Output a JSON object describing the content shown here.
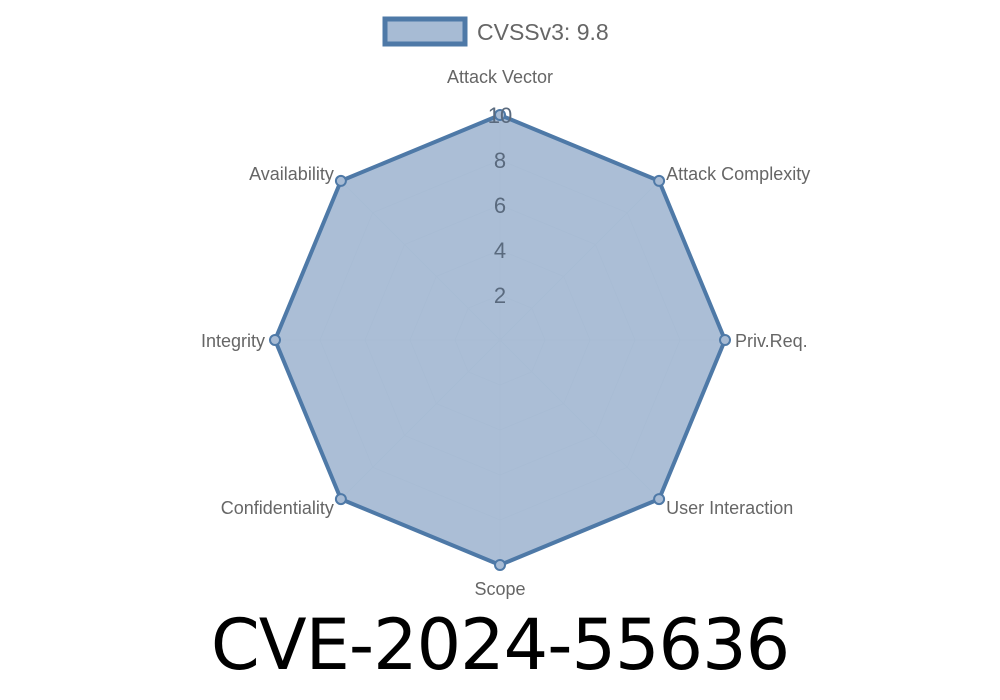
{
  "chart_data": {
    "type": "radar",
    "categories": [
      "Attack Vector",
      "Attack Complexity",
      "Priv.Req.",
      "User Interaction",
      "Scope",
      "Confidentiality",
      "Integrity",
      "Availability"
    ],
    "series": [
      {
        "name": "CVSSv3: 9.8",
        "values": [
          10,
          10,
          10,
          10,
          10,
          10,
          10,
          10
        ]
      }
    ],
    "rlim": [
      0,
      10
    ],
    "ticks": [
      "2",
      "4",
      "6",
      "8",
      "10"
    ],
    "tick_values": [
      2,
      4,
      6,
      8,
      10
    ],
    "legend_position": "top",
    "grid": true,
    "colors": {
      "stroke": "#4e79a7",
      "fill": "#a7bbd4",
      "grid": "#c8ccd2",
      "text": "#666666"
    }
  },
  "title": "CVE-2024-55636"
}
